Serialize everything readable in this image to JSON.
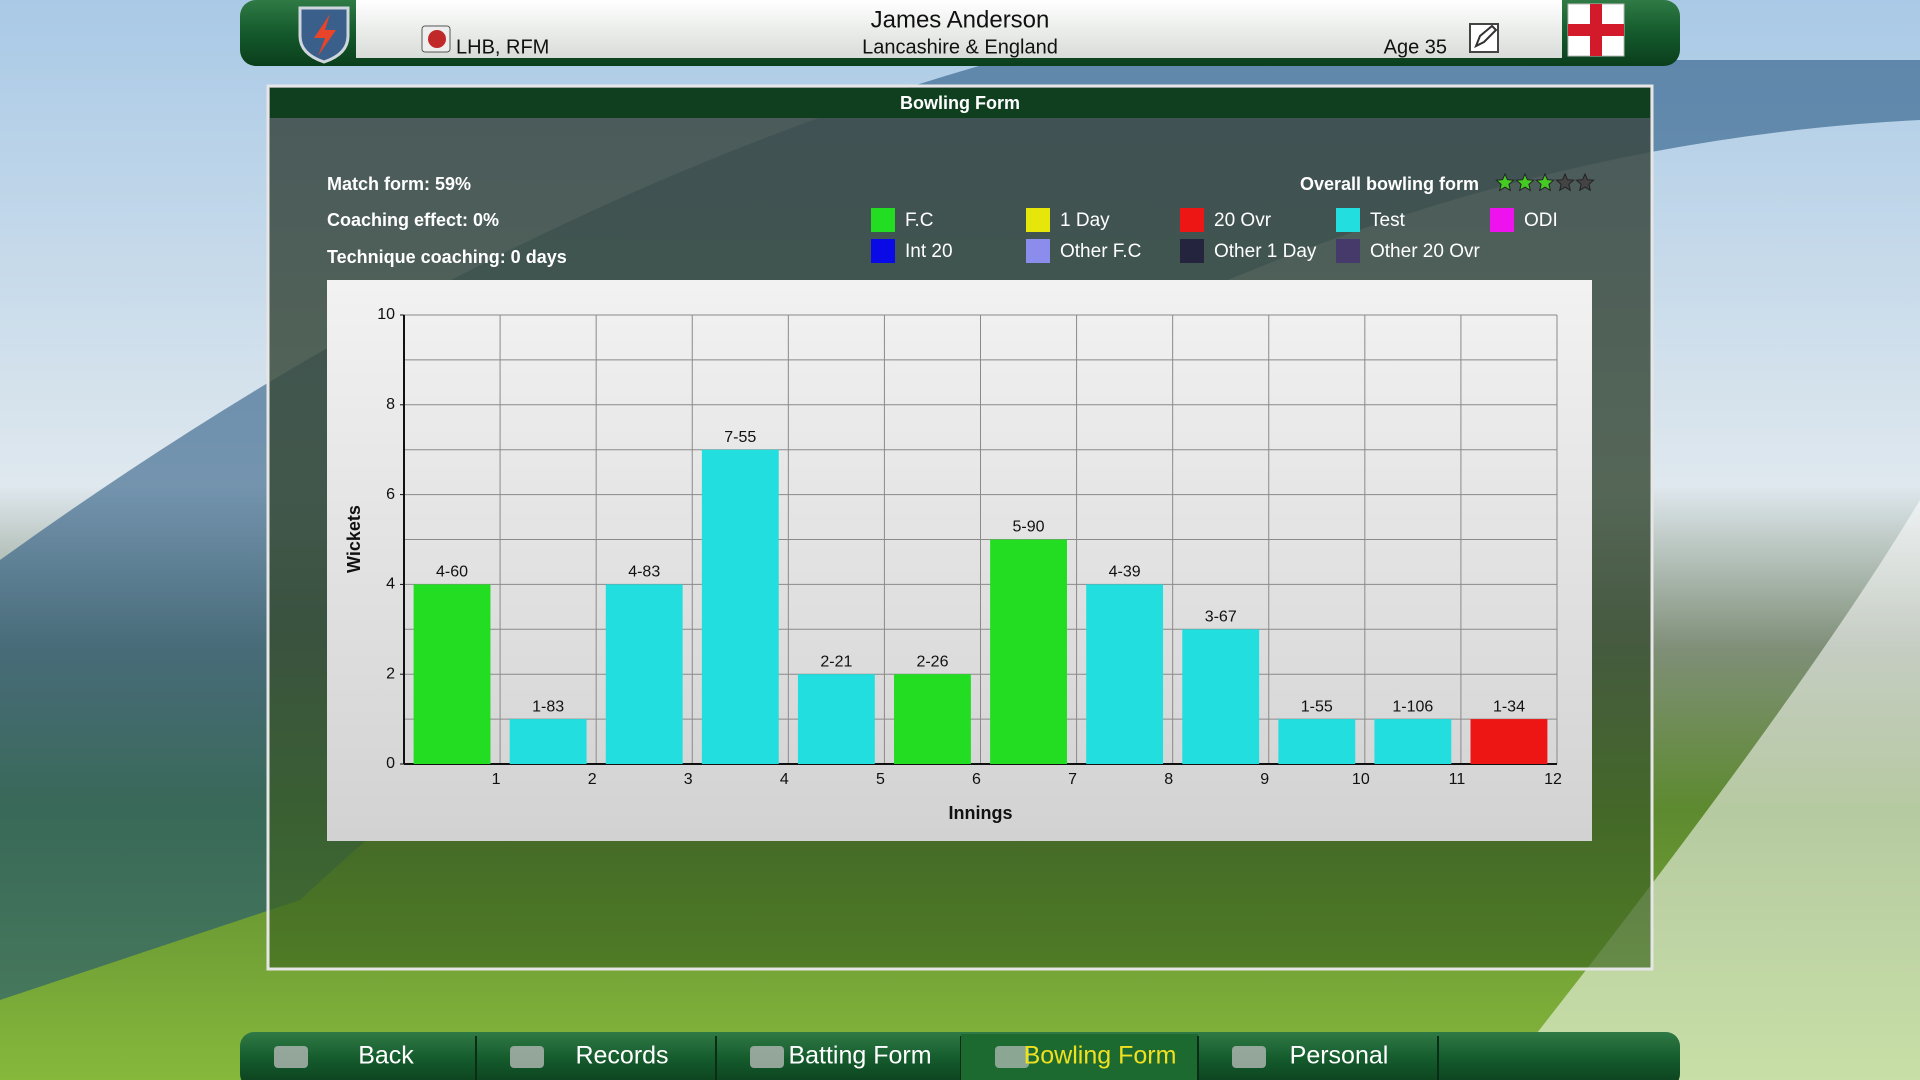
{
  "header": {
    "name": "James Anderson",
    "team": "Lancashire & England",
    "role": "LHB, RFM",
    "age": "Age 35"
  },
  "panel": {
    "title": "Bowling Form"
  },
  "stats": {
    "match_form": "Match form: 59%",
    "coaching_effect": "Coaching effect: 0%",
    "technique_coaching": "Technique coaching: 0 days"
  },
  "overall_form": {
    "label": "Overall bowling form",
    "stars": 3,
    "max": 5
  },
  "chart_data": {
    "type": "bar",
    "legend": [
      {
        "name": "F.C",
        "color": "#22dd22"
      },
      {
        "name": "1 Day",
        "color": "#e6e60a"
      },
      {
        "name": "20 Ovr",
        "color": "#ee1515"
      },
      {
        "name": "Test",
        "color": "#22dede"
      },
      {
        "name": "ODI",
        "color": "#ee12ee"
      },
      {
        "name": "Int 20",
        "color": "#0a0ae6"
      },
      {
        "name": "Other F.C",
        "color": "#8c8cec"
      },
      {
        "name": "Other 1 Day",
        "color": "#24243e"
      },
      {
        "name": "Other 20 Ovr",
        "color": "#463a6a"
      }
    ],
    "x_label": "Innings",
    "y_label": "Wickets",
    "categories": [
      1,
      2,
      3,
      4,
      5,
      6,
      7,
      8,
      9,
      10,
      11,
      12
    ],
    "values": [
      4,
      1,
      4,
      7,
      2,
      2,
      5,
      4,
      3,
      1,
      1,
      1
    ],
    "value_labels": [
      "4-60",
      "1-83",
      "4-83",
      "7-55",
      "2-21",
      "2-26",
      "5-90",
      "4-39",
      "3-67",
      "1-55",
      "1-106",
      "1-34"
    ],
    "colors": [
      "#22dd22",
      "#22dede",
      "#22dede",
      "#22dede",
      "#22dede",
      "#22dd22",
      "#22dd22",
      "#22dede",
      "#22dede",
      "#22dede",
      "#22dede",
      "#ee1515"
    ],
    "ylim": [
      0,
      10
    ],
    "yticks": [
      0,
      2,
      4,
      6,
      8,
      10
    ],
    "grid": true,
    "grid_step": 1
  },
  "nav": [
    "Back",
    "Records",
    "Batting Form",
    "Bowling Form",
    "Personal"
  ],
  "nav_active": 3
}
